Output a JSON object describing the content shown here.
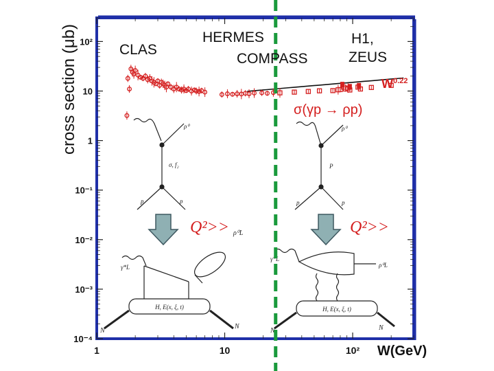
{
  "labels": {
    "clas": "CLAS",
    "hermes": "HERMES",
    "compass": "COMPASS",
    "h1": "H1,",
    "zeus": "ZEUS",
    "q2_left": "Q²>>",
    "q2_right": "Q²>>"
  },
  "colors": {
    "frame": "#1f2fa8",
    "data": "#d41e1e",
    "divider": "#1a9a3c",
    "arrow": "#8fb0b3"
  },
  "diagrams": {
    "top_left": {
      "top": "ρ⁰",
      "prop": "σ, f₂",
      "bl": "p",
      "br": "p"
    },
    "top_right": {
      "top": "ρ⁰",
      "prop": "P",
      "bl": "p",
      "br": "p"
    },
    "bottom_left": {
      "gamma": "γ*L",
      "meson": "ρ⁰L",
      "box": "H, E(x, ξ, t)",
      "n1": "N",
      "n2": "N"
    },
    "bottom_right": {
      "gamma": "γ*L",
      "meson": "ρ⁰L",
      "box": "H, E(x, ξ, t)",
      "n1": "N",
      "n2": "N"
    }
  },
  "chart_data": {
    "type": "scatter",
    "xlabel": "W(GeV)",
    "ylabel": "cross section (μb)",
    "xscale": "log",
    "yscale": "log",
    "xlim": [
      1,
      300
    ],
    "ylim": [
      0.0001,
      300
    ],
    "x_ticks": [
      {
        "value": 1,
        "label": "1"
      },
      {
        "value": 10,
        "label": "10"
      },
      {
        "value": 100,
        "label": "10²"
      }
    ],
    "y_ticks": [
      {
        "value": 100,
        "label": "10²"
      },
      {
        "value": 10,
        "label": "10"
      },
      {
        "value": 1,
        "label": "1"
      },
      {
        "value": 0.1,
        "label": "10⁻¹"
      },
      {
        "value": 0.01,
        "label": "10⁻²"
      },
      {
        "value": 0.001,
        "label": "10⁻³"
      },
      {
        "value": 0.0001,
        "label": "10⁻⁴"
      }
    ],
    "fit_label": "W^0.22",
    "fit_exponent": 0.22,
    "fit_range": [
      15,
      250
    ],
    "fit_ref": {
      "w": 100,
      "y": 15
    },
    "reaction_label": "σ(γp → ρp)",
    "divider_x": 25,
    "series": [
      {
        "marker": "circle",
        "points": [
          [
            1.75,
            18
          ],
          [
            1.8,
            11
          ],
          [
            1.85,
            28
          ],
          [
            1.9,
            24
          ],
          [
            1.95,
            22
          ],
          [
            2.0,
            26
          ],
          [
            2.1,
            21
          ],
          [
            2.2,
            19
          ],
          [
            2.3,
            18
          ],
          [
            2.4,
            20
          ],
          [
            2.5,
            17
          ],
          [
            2.6,
            18
          ],
          [
            2.7,
            16
          ],
          [
            2.8,
            15
          ],
          [
            2.9,
            14
          ],
          [
            3.0,
            16
          ],
          [
            3.1,
            13
          ],
          [
            3.2,
            15
          ],
          [
            3.3,
            14
          ],
          [
            3.4,
            13
          ],
          [
            3.5,
            12
          ],
          [
            3.6,
            14
          ],
          [
            3.8,
            12
          ],
          [
            4.0,
            11
          ],
          [
            4.2,
            12
          ],
          [
            4.4,
            11
          ],
          [
            4.6,
            10.5
          ],
          [
            4.8,
            11
          ],
          [
            5.0,
            10.2
          ],
          [
            5.2,
            11
          ],
          [
            5.5,
            10
          ],
          [
            5.8,
            10.5
          ],
          [
            6.0,
            10
          ],
          [
            6.3,
            9.8
          ],
          [
            6.6,
            10.2
          ],
          [
            7.0,
            9.5
          ],
          [
            9.5,
            8.5
          ],
          [
            10.5,
            8.8
          ],
          [
            11.5,
            8.6
          ],
          [
            12.5,
            8.8
          ],
          [
            13.5,
            8.7
          ],
          [
            14.5,
            9.0
          ],
          [
            15.5,
            8.8
          ],
          [
            17,
            9.1
          ],
          [
            19.5,
            9.2
          ],
          [
            21.5,
            9.0
          ],
          [
            24,
            9.3
          ]
        ]
      },
      {
        "marker": "square",
        "points": [
          [
            27,
            9.2
          ],
          [
            35,
            9.5
          ],
          [
            45,
            9.8
          ],
          [
            55,
            10.1
          ],
          [
            70,
            10.2
          ],
          [
            77,
            10.6
          ],
          [
            80,
            10.7
          ],
          [
            85,
            12
          ],
          [
            88,
            11
          ],
          [
            92,
            11.5
          ],
          [
            95,
            10.5
          ],
          [
            110,
            12
          ],
          [
            115,
            11
          ],
          [
            140,
            11.8
          ],
          [
            200,
            13
          ]
        ]
      }
    ]
  }
}
